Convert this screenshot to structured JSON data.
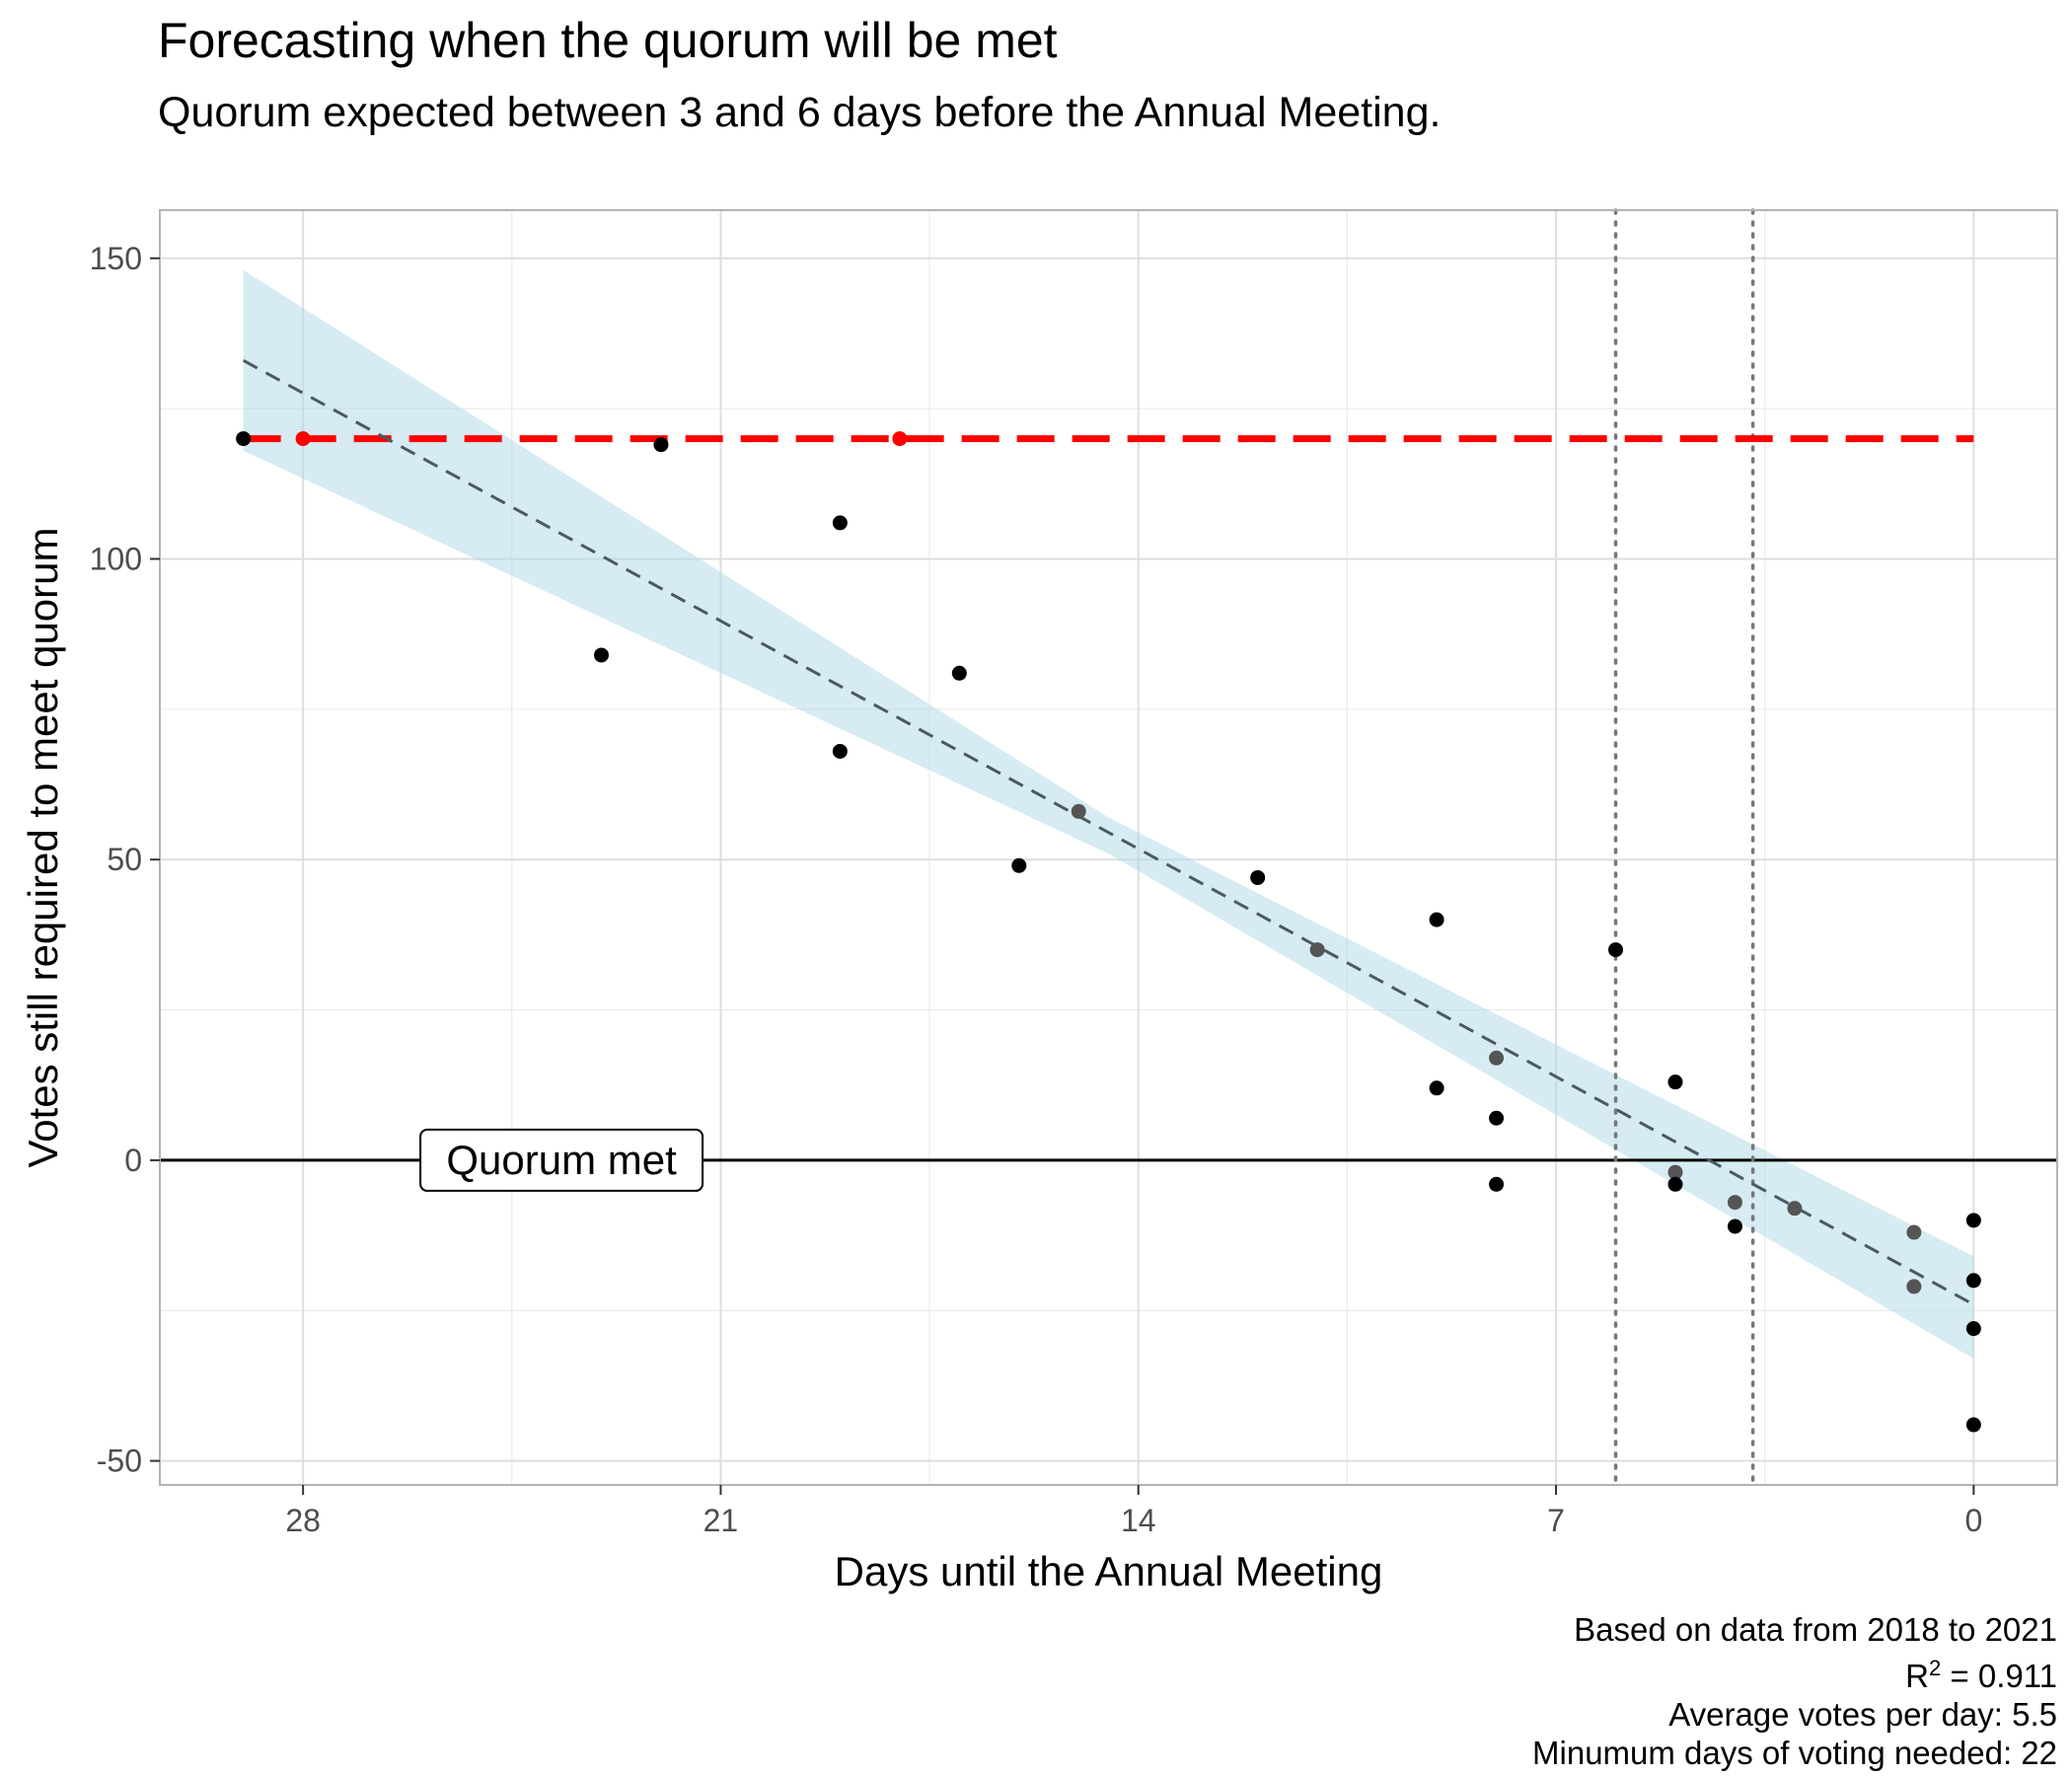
{
  "title": "Forecasting when the quorum will be met",
  "subtitle": "Quorum expected between 3 and 6 days before the Annual Meeting.",
  "caption": {
    "line1": "Based on data from 2018 to 2021",
    "r2_label": "R",
    "r2_sup": "2",
    "r2_value": " = 0.911",
    "line3": "Average votes per day: 5.5",
    "line4": "Minumum days of voting needed: 22"
  },
  "chart_data": {
    "type": "scatter",
    "title": "Forecasting when the quorum will be met",
    "subtitle": "Quorum expected between 3 and 6 days before the Annual Meeting.",
    "xlabel": "Days until the Annual Meeting",
    "ylabel": "Votes still required to meet quorum",
    "x_reversed": true,
    "xlim": [
      30.4,
      -1.4
    ],
    "ylim": [
      -54,
      158
    ],
    "x_ticks": [
      28,
      21,
      14,
      7,
      0
    ],
    "y_ticks": [
      150,
      100,
      50,
      0,
      -50
    ],
    "grid": true,
    "points": [
      {
        "x": 29,
        "y": 120,
        "color": "#000000"
      },
      {
        "x": 28,
        "y": 120,
        "color": "#ff0000"
      },
      {
        "x": 23,
        "y": 84,
        "color": "#000000"
      },
      {
        "x": 22,
        "y": 119,
        "color": "#000000"
      },
      {
        "x": 19,
        "y": 106,
        "color": "#000000"
      },
      {
        "x": 19,
        "y": 68,
        "color": "#000000"
      },
      {
        "x": 18,
        "y": 120,
        "color": "#ff0000"
      },
      {
        "x": 17,
        "y": 81,
        "color": "#000000"
      },
      {
        "x": 16,
        "y": 49,
        "color": "#000000"
      },
      {
        "x": 15,
        "y": 58,
        "color": "#555555"
      },
      {
        "x": 12,
        "y": 47,
        "color": "#000000"
      },
      {
        "x": 11,
        "y": 35,
        "color": "#555555"
      },
      {
        "x": 9,
        "y": 40,
        "color": "#000000"
      },
      {
        "x": 9,
        "y": 12,
        "color": "#000000"
      },
      {
        "x": 8,
        "y": 17,
        "color": "#555555"
      },
      {
        "x": 8,
        "y": 7,
        "color": "#000000"
      },
      {
        "x": 8,
        "y": -4,
        "color": "#000000"
      },
      {
        "x": 6,
        "y": 35,
        "color": "#000000"
      },
      {
        "x": 5,
        "y": 13,
        "color": "#000000"
      },
      {
        "x": 5,
        "y": -2,
        "color": "#555555"
      },
      {
        "x": 5,
        "y": -4,
        "color": "#000000"
      },
      {
        "x": 4,
        "y": -7,
        "color": "#555555"
      },
      {
        "x": 4,
        "y": -11,
        "color": "#000000"
      },
      {
        "x": 3,
        "y": -8,
        "color": "#555555"
      },
      {
        "x": 1,
        "y": -12,
        "color": "#555555"
      },
      {
        "x": 1,
        "y": -21,
        "color": "#555555"
      },
      {
        "x": 0,
        "y": -10,
        "color": "#000000"
      },
      {
        "x": 0,
        "y": -20,
        "color": "#000000"
      },
      {
        "x": 0,
        "y": -28,
        "color": "#000000"
      },
      {
        "x": 0,
        "y": -44,
        "color": "#000000"
      }
    ],
    "trend_line": {
      "x": [
        29,
        0
      ],
      "y": [
        133,
        -24
      ],
      "color": "#4a5a63",
      "style": "dashed"
    },
    "confidence_band": {
      "x": [
        29,
        14.5,
        0
      ],
      "upper": [
        148,
        57,
        -16
      ],
      "lower": [
        118,
        51,
        -33
      ],
      "color": "#add8e6"
    },
    "quorum_target_line": {
      "y": 120,
      "x_start": 29,
      "x_end": 0,
      "color": "#ff0000",
      "style": "dashed"
    },
    "zero_line": {
      "y": 0,
      "color": "#000000"
    },
    "vertical_markers": [
      6,
      3.7
    ],
    "annotation": {
      "text": "Quorum met",
      "x": 26,
      "y": 0
    }
  }
}
